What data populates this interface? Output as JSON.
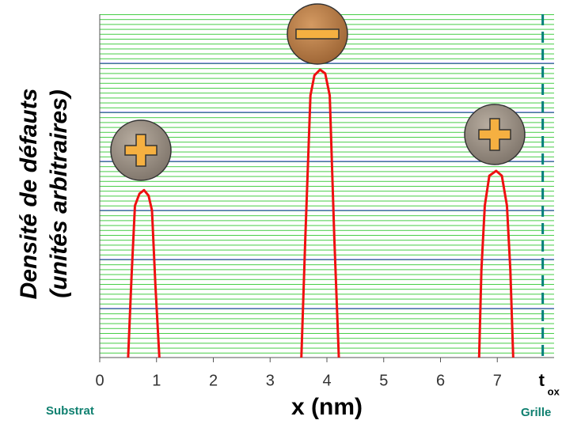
{
  "chart_data": {
    "type": "line",
    "y_label": [
      "Densité de défauts",
      "(unités arbitraires)"
    ],
    "x_label": "x (nm)",
    "left_label": "Substrat",
    "right_label": "Grille",
    "xlim": [
      0,
      8
    ],
    "xticks": [
      0,
      1,
      2,
      3,
      4,
      5,
      6,
      7
    ],
    "tox": {
      "x": 7.8,
      "label": "t",
      "subscript": "ox"
    },
    "ylim": [
      1,
      10000000
    ],
    "yticks": [
      10,
      100,
      1000,
      10000,
      100000,
      1000000
    ],
    "log_y": true,
    "grid": true,
    "series": [
      {
        "color": "#ee1111",
        "x": [
          0.5,
          0.56,
          0.62,
          0.7,
          0.78,
          0.86,
          0.92,
          0.98,
          1.05
        ],
        "values": [
          1,
          45,
          1250,
          2200,
          2600,
          2000,
          1000,
          30,
          1
        ]
      },
      {
        "color": "#ee1111",
        "x": [
          3.55,
          3.62,
          3.71,
          3.78,
          3.88,
          3.97,
          4.05,
          4.13,
          4.21
        ],
        "values": [
          1,
          280,
          220000,
          570000,
          740000,
          620000,
          220000,
          280,
          1
        ]
      },
      {
        "color": "#ee1111",
        "x": [
          6.68,
          6.72,
          6.78,
          6.86,
          6.98,
          7.08,
          7.17,
          7.23,
          7.28
        ],
        "values": [
          1,
          60,
          1250,
          5100,
          6400,
          5100,
          1250,
          60,
          1
        ]
      }
    ]
  }
}
